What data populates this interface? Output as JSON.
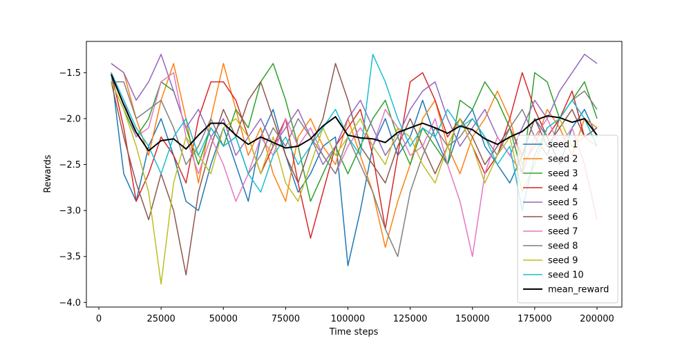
{
  "chart_data": {
    "type": "line",
    "title": "",
    "xlabel": "Time steps",
    "ylabel": "Rewards",
    "xlim": [
      -5000,
      210000
    ],
    "ylim": [
      -4.05,
      -1.16
    ],
    "xticks": [
      0,
      25000,
      50000,
      75000,
      100000,
      125000,
      150000,
      175000,
      200000
    ],
    "xtick_labels": [
      "0",
      "25000",
      "50000",
      "75000",
      "100000",
      "125000",
      "150000",
      "175000",
      "200000"
    ],
    "yticks": [
      -4.0,
      -3.5,
      -3.0,
      -2.5,
      -2.0,
      -1.5
    ],
    "ytick_labels": [
      "−4.0",
      "−3.5",
      "−3.0",
      "−2.5",
      "−2.0",
      "−1.5"
    ],
    "grid": false,
    "legend_position": "lower-right",
    "series": [
      {
        "name": "seed 1",
        "color": "#1f77b4",
        "x": [
          5000,
          10000,
          15000,
          20000,
          25000,
          30000,
          35000,
          40000,
          45000,
          50000,
          55000,
          60000,
          65000,
          70000,
          75000,
          80000,
          85000,
          90000,
          95000,
          100000,
          105000,
          110000,
          115000,
          120000,
          125000,
          130000,
          135000,
          140000,
          145000,
          150000,
          155000,
          160000,
          165000,
          170000,
          175000,
          180000,
          185000,
          190000,
          195000,
          200000
        ],
        "y": [
          -1.5,
          -2.6,
          -2.9,
          -2.3,
          -2.0,
          -2.4,
          -2.9,
          -3.0,
          -2.5,
          -2.1,
          -2.5,
          -2.9,
          -2.2,
          -1.9,
          -2.4,
          -2.8,
          -2.6,
          -2.3,
          -2.2,
          -3.6,
          -3.0,
          -2.3,
          -2.0,
          -2.4,
          -2.2,
          -1.8,
          -2.2,
          -2.5,
          -2.1,
          -1.9,
          -2.3,
          -2.5,
          -2.7,
          -2.4,
          -2.0,
          -2.2,
          -2.5,
          -2.1,
          -1.9,
          -2.2
        ]
      },
      {
        "name": "seed 2",
        "color": "#ff7f0e",
        "x": [
          5000,
          10000,
          15000,
          20000,
          25000,
          30000,
          35000,
          40000,
          45000,
          50000,
          55000,
          60000,
          65000,
          70000,
          75000,
          80000,
          85000,
          90000,
          95000,
          100000,
          105000,
          110000,
          115000,
          120000,
          125000,
          130000,
          135000,
          140000,
          145000,
          150000,
          155000,
          160000,
          165000,
          170000,
          175000,
          180000,
          185000,
          190000,
          195000,
          200000
        ],
        "y": [
          -1.4,
          -1.5,
          -2.0,
          -2.4,
          -1.8,
          -1.4,
          -2.0,
          -2.7,
          -2.0,
          -1.4,
          -1.9,
          -2.4,
          -2.1,
          -2.6,
          -2.9,
          -2.2,
          -2.0,
          -2.3,
          -2.5,
          -2.0,
          -2.4,
          -2.8,
          -3.4,
          -2.9,
          -2.5,
          -2.0,
          -1.8,
          -2.3,
          -2.6,
          -2.2,
          -2.0,
          -1.7,
          -2.0,
          -2.5,
          -2.3,
          -1.9,
          -2.1,
          -2.4,
          -2.0,
          -2.1
        ]
      },
      {
        "name": "seed 3",
        "color": "#2ca02c",
        "x": [
          5000,
          10000,
          15000,
          20000,
          25000,
          30000,
          35000,
          40000,
          45000,
          50000,
          55000,
          60000,
          65000,
          70000,
          75000,
          80000,
          85000,
          90000,
          95000,
          100000,
          105000,
          110000,
          115000,
          120000,
          125000,
          130000,
          135000,
          140000,
          145000,
          150000,
          155000,
          160000,
          165000,
          170000,
          175000,
          180000,
          185000,
          190000,
          195000,
          200000
        ],
        "y": [
          -1.6,
          -1.9,
          -2.2,
          -2.0,
          -1.6,
          -1.7,
          -2.1,
          -2.5,
          -2.1,
          -2.3,
          -1.9,
          -2.1,
          -1.6,
          -1.4,
          -1.8,
          -2.3,
          -2.9,
          -2.6,
          -2.3,
          -2.6,
          -2.3,
          -2.0,
          -1.8,
          -2.2,
          -2.5,
          -2.1,
          -2.3,
          -2.5,
          -1.8,
          -1.9,
          -1.6,
          -1.8,
          -2.1,
          -2.6,
          -1.5,
          -1.6,
          -2.0,
          -1.8,
          -1.6,
          -2.0
        ]
      },
      {
        "name": "seed 4",
        "color": "#d62728",
        "x": [
          5000,
          10000,
          15000,
          20000,
          25000,
          30000,
          35000,
          40000,
          45000,
          50000,
          55000,
          60000,
          65000,
          70000,
          75000,
          80000,
          85000,
          90000,
          95000,
          100000,
          105000,
          110000,
          115000,
          120000,
          125000,
          130000,
          135000,
          140000,
          145000,
          150000,
          155000,
          160000,
          165000,
          170000,
          175000,
          180000,
          185000,
          190000,
          195000,
          200000
        ],
        "y": [
          -1.5,
          -2.1,
          -2.9,
          -2.6,
          -2.2,
          -2.4,
          -2.7,
          -2.0,
          -1.6,
          -1.6,
          -1.8,
          -2.2,
          -2.6,
          -2.3,
          -2.0,
          -2.7,
          -3.3,
          -2.8,
          -2.3,
          -2.1,
          -1.9,
          -2.4,
          -3.2,
          -2.4,
          -1.6,
          -1.5,
          -1.8,
          -2.2,
          -2.0,
          -2.3,
          -2.6,
          -2.4,
          -2.0,
          -1.5,
          -1.9,
          -2.2,
          -2.0,
          -1.7,
          -2.2,
          -2.1
        ]
      },
      {
        "name": "seed 5",
        "color": "#9467bd",
        "x": [
          5000,
          10000,
          15000,
          20000,
          25000,
          30000,
          35000,
          40000,
          45000,
          50000,
          55000,
          60000,
          65000,
          70000,
          75000,
          80000,
          85000,
          90000,
          95000,
          100000,
          105000,
          110000,
          115000,
          120000,
          125000,
          130000,
          135000,
          140000,
          145000,
          150000,
          155000,
          160000,
          165000,
          170000,
          175000,
          180000,
          185000,
          190000,
          195000,
          200000
        ],
        "y": [
          -1.4,
          -1.5,
          -1.8,
          -1.6,
          -1.3,
          -1.7,
          -2.1,
          -1.9,
          -2.2,
          -2.0,
          -2.4,
          -2.2,
          -2.0,
          -2.3,
          -2.1,
          -1.9,
          -2.2,
          -2.5,
          -2.3,
          -2.0,
          -1.8,
          -2.1,
          -2.4,
          -2.2,
          -1.9,
          -1.7,
          -1.6,
          -2.0,
          -2.3,
          -2.1,
          -1.9,
          -2.2,
          -2.4,
          -2.1,
          -1.8,
          -2.0,
          -1.7,
          -1.5,
          -1.3,
          -1.4
        ]
      },
      {
        "name": "seed 6",
        "color": "#8c564b",
        "x": [
          5000,
          10000,
          15000,
          20000,
          25000,
          30000,
          35000,
          40000,
          45000,
          50000,
          55000,
          60000,
          65000,
          70000,
          75000,
          80000,
          85000,
          90000,
          95000,
          100000,
          105000,
          110000,
          115000,
          120000,
          125000,
          130000,
          135000,
          140000,
          145000,
          150000,
          155000,
          160000,
          165000,
          170000,
          175000,
          180000,
          185000,
          190000,
          195000,
          200000
        ],
        "y": [
          -1.6,
          -2.2,
          -2.7,
          -3.1,
          -2.6,
          -3.0,
          -3.7,
          -2.8,
          -2.3,
          -1.9,
          -2.2,
          -1.8,
          -1.6,
          -2.0,
          -2.4,
          -2.7,
          -2.3,
          -2.0,
          -1.4,
          -1.8,
          -2.3,
          -2.5,
          -2.7,
          -2.3,
          -2.0,
          -2.3,
          -2.6,
          -2.3,
          -2.0,
          -2.2,
          -2.5,
          -2.3,
          -2.1,
          -2.4,
          -2.0,
          -2.3,
          -2.1,
          -1.9,
          -2.2,
          -2.1
        ]
      },
      {
        "name": "seed 7",
        "color": "#e377c2",
        "x": [
          5000,
          10000,
          15000,
          20000,
          25000,
          30000,
          35000,
          40000,
          45000,
          50000,
          55000,
          60000,
          65000,
          70000,
          75000,
          80000,
          85000,
          90000,
          95000,
          100000,
          105000,
          110000,
          115000,
          120000,
          125000,
          130000,
          135000,
          140000,
          145000,
          150000,
          155000,
          160000,
          165000,
          170000,
          175000,
          180000,
          185000,
          190000,
          195000,
          200000
        ],
        "y": [
          -1.5,
          -1.8,
          -2.2,
          -2.1,
          -1.6,
          -1.5,
          -2.2,
          -2.6,
          -2.2,
          -2.5,
          -2.9,
          -2.6,
          -2.2,
          -2.4,
          -2.0,
          -2.3,
          -2.1,
          -2.4,
          -2.6,
          -2.3,
          -2.1,
          -2.3,
          -1.9,
          -2.1,
          -2.4,
          -2.3,
          -2.0,
          -2.5,
          -2.9,
          -3.5,
          -2.6,
          -2.2,
          -2.4,
          -2.6,
          -2.2,
          -2.0,
          -2.3,
          -2.1,
          -2.5,
          -3.1
        ]
      },
      {
        "name": "seed 8",
        "color": "#7f7f7f",
        "x": [
          5000,
          10000,
          15000,
          20000,
          25000,
          30000,
          35000,
          40000,
          45000,
          50000,
          55000,
          60000,
          65000,
          70000,
          75000,
          80000,
          85000,
          90000,
          95000,
          100000,
          105000,
          110000,
          115000,
          120000,
          125000,
          130000,
          135000,
          140000,
          145000,
          150000,
          155000,
          160000,
          165000,
          170000,
          175000,
          180000,
          185000,
          190000,
          195000,
          200000
        ],
        "y": [
          -1.6,
          -1.6,
          -2.0,
          -1.9,
          -1.8,
          -2.1,
          -2.5,
          -2.3,
          -2.0,
          -2.3,
          -2.2,
          -2.6,
          -2.4,
          -2.1,
          -2.3,
          -2.0,
          -2.2,
          -2.4,
          -2.6,
          -2.2,
          -2.5,
          -2.8,
          -3.2,
          -3.5,
          -2.8,
          -2.4,
          -2.1,
          -2.3,
          -2.2,
          -2.0,
          -2.2,
          -2.4,
          -2.1,
          -1.9,
          -2.2,
          -2.4,
          -2.0,
          -1.8,
          -1.7,
          -1.9
        ]
      },
      {
        "name": "seed 9",
        "color": "#bcbd22",
        "x": [
          5000,
          10000,
          15000,
          20000,
          25000,
          30000,
          35000,
          40000,
          45000,
          50000,
          55000,
          60000,
          65000,
          70000,
          75000,
          80000,
          85000,
          90000,
          95000,
          100000,
          105000,
          110000,
          115000,
          120000,
          125000,
          130000,
          135000,
          140000,
          145000,
          150000,
          155000,
          160000,
          165000,
          170000,
          175000,
          180000,
          185000,
          190000,
          195000,
          200000
        ],
        "y": [
          -1.6,
          -1.9,
          -2.3,
          -2.8,
          -3.8,
          -2.7,
          -2.2,
          -2.4,
          -2.6,
          -2.1,
          -2.0,
          -2.2,
          -2.6,
          -2.2,
          -2.7,
          -2.9,
          -2.5,
          -2.1,
          -2.4,
          -2.2,
          -2.0,
          -2.3,
          -2.5,
          -2.1,
          -2.2,
          -2.5,
          -2.7,
          -2.3,
          -2.0,
          -2.3,
          -2.7,
          -2.4,
          -2.2,
          -2.8,
          -2.5,
          -2.1,
          -2.0,
          -2.3,
          -2.2,
          -2.3
        ]
      },
      {
        "name": "seed 10",
        "color": "#17becf",
        "x": [
          5000,
          10000,
          15000,
          20000,
          25000,
          30000,
          35000,
          40000,
          45000,
          50000,
          55000,
          60000,
          65000,
          70000,
          75000,
          80000,
          85000,
          90000,
          95000,
          100000,
          105000,
          110000,
          115000,
          120000,
          125000,
          130000,
          135000,
          140000,
          145000,
          150000,
          155000,
          160000,
          165000,
          170000,
          175000,
          180000,
          185000,
          190000,
          195000,
          200000
        ],
        "y": [
          -1.5,
          -1.8,
          -2.1,
          -2.3,
          -2.6,
          -2.2,
          -2.0,
          -2.4,
          -2.1,
          -2.3,
          -2.2,
          -2.6,
          -2.8,
          -2.4,
          -2.2,
          -2.5,
          -2.3,
          -2.1,
          -1.9,
          -2.2,
          -2.4,
          -1.3,
          -1.6,
          -2.0,
          -2.3,
          -2.1,
          -2.2,
          -1.9,
          -2.1,
          -2.0,
          -2.2,
          -2.5,
          -2.3,
          -3.0,
          -2.4,
          -2.1,
          -2.0,
          -1.8,
          -2.0,
          -2.3
        ]
      },
      {
        "name": "mean_reward",
        "color": "#000000",
        "x": [
          5000,
          10000,
          15000,
          20000,
          25000,
          30000,
          35000,
          40000,
          45000,
          50000,
          55000,
          60000,
          65000,
          70000,
          75000,
          80000,
          85000,
          90000,
          95000,
          100000,
          105000,
          110000,
          115000,
          120000,
          125000,
          130000,
          135000,
          140000,
          145000,
          150000,
          155000,
          160000,
          165000,
          170000,
          175000,
          180000,
          185000,
          190000,
          195000,
          200000
        ],
        "y": [
          -1.52,
          -1.85,
          -2.15,
          -2.35,
          -2.24,
          -2.22,
          -2.33,
          -2.18,
          -2.05,
          -2.05,
          -2.18,
          -2.28,
          -2.2,
          -2.26,
          -2.32,
          -2.3,
          -2.22,
          -2.08,
          -1.98,
          -2.18,
          -2.21,
          -2.22,
          -2.26,
          -2.15,
          -2.1,
          -2.05,
          -2.1,
          -2.16,
          -2.08,
          -2.12,
          -2.22,
          -2.28,
          -2.2,
          -2.14,
          -2.02,
          -1.97,
          -1.99,
          -2.04,
          -2.0,
          -2.18
        ]
      }
    ]
  }
}
